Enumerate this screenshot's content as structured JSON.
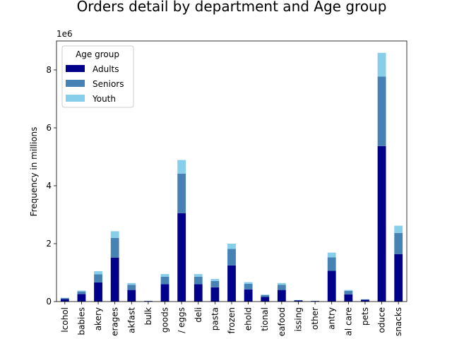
{
  "chart_data": {
    "type": "bar",
    "stacked": true,
    "title": "Orders detail by department and Age group",
    "ylabel": "Frequency in millions",
    "xlabel": "",
    "y_offset_text": "1e6",
    "ylim": [
      0,
      9000000
    ],
    "yticks": [
      0,
      2000000,
      4000000,
      6000000,
      8000000
    ],
    "ytick_labels": [
      "0",
      "2",
      "4",
      "6",
      "8"
    ],
    "categories": [
      "alcohol",
      "babies",
      "bakery",
      "beverages",
      "breakfast",
      "bulk",
      "canned goods",
      "dairy eggs",
      "deli",
      "dry goods pasta",
      "frozen",
      "household",
      "international",
      "meat seafood",
      "missing",
      "other",
      "pantry",
      "personal care",
      "pets",
      "produce",
      "snacks"
    ],
    "category_labels_visible": [
      "lcohol",
      "babies",
      "akery",
      "erages",
      "akfast",
      "bulk",
      "goods",
      "/ eggs",
      "deli",
      "pasta",
      "frozen",
      "ehold",
      "tional",
      "eafood",
      "issing",
      "other",
      "antry",
      "al care",
      "pets",
      "oduce",
      "snacks"
    ],
    "series": [
      {
        "name": "Adults",
        "color": "#00008b",
        "values": [
          90000,
          260000,
          660000,
          1520000,
          400000,
          20000,
          600000,
          3050000,
          600000,
          490000,
          1250000,
          420000,
          160000,
          400000,
          40000,
          20000,
          1060000,
          250000,
          60000,
          5370000,
          1640000
        ]
      },
      {
        "name": "Seniors",
        "color": "#4682b4",
        "values": [
          30000,
          90000,
          280000,
          680000,
          180000,
          5000,
          260000,
          1370000,
          260000,
          220000,
          570000,
          190000,
          60000,
          180000,
          10000,
          5000,
          470000,
          120000,
          15000,
          2400000,
          730000
        ]
      },
      {
        "name": "Youth",
        "color": "#87ceeb",
        "values": [
          10000,
          30000,
          110000,
          230000,
          60000,
          2000,
          90000,
          470000,
          90000,
          70000,
          180000,
          60000,
          20000,
          60000,
          5000,
          2000,
          160000,
          30000,
          5000,
          820000,
          250000
        ]
      }
    ],
    "legend": {
      "title": "Age group",
      "position": "top-left"
    },
    "grid": false
  }
}
